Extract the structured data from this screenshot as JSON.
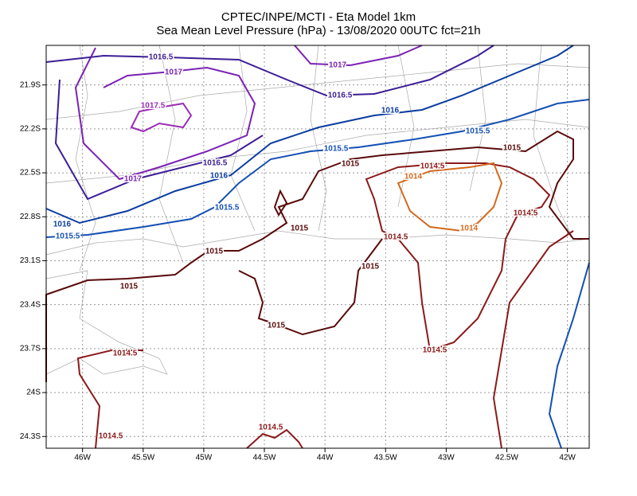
{
  "title": [
    "CPTEC/INPE/MCTI -  Eta Model 1km",
    "Sea Mean Level Pressure (hPa) - 13/08/2020 00UTC fct=21h"
  ],
  "map": {
    "xlim": [
      -46.3,
      -41.82
    ],
    "ylim": [
      -24.38,
      -21.63
    ],
    "xticks": [
      {
        "value": -46,
        "label": "46W"
      },
      {
        "value": -45.5,
        "label": "45.5W"
      },
      {
        "value": -45,
        "label": "45W"
      },
      {
        "value": -44.5,
        "label": "44.5W"
      },
      {
        "value": -44,
        "label": "44W"
      },
      {
        "value": -43.5,
        "label": "43.5W"
      },
      {
        "value": -43,
        "label": "43W"
      },
      {
        "value": -42.5,
        "label": "42.5W"
      },
      {
        "value": -42,
        "label": "42W"
      }
    ],
    "yticks": [
      {
        "value": -21.9,
        "label": "21.9S"
      },
      {
        "value": -22.2,
        "label": "22.2S"
      },
      {
        "value": -22.5,
        "label": "22.5S"
      },
      {
        "value": -22.8,
        "label": "22.8S"
      },
      {
        "value": -23.1,
        "label": "23.1S"
      },
      {
        "value": -23.4,
        "label": "23.4S"
      },
      {
        "value": -23.7,
        "label": "23.7S"
      },
      {
        "value": -24,
        "label": "24S"
      },
      {
        "value": -24.3,
        "label": "24.3S"
      }
    ],
    "grid": true,
    "contour_levels": [
      {
        "value": 1014,
        "color": "#d2691e"
      },
      {
        "value": 1014.5,
        "color": "#8b1a1a"
      },
      {
        "value": 1015,
        "color": "#5a0a0a"
      },
      {
        "value": 1015.5,
        "color": "#1450b4"
      },
      {
        "value": 1016,
        "color": "#0a3ca0"
      },
      {
        "value": 1016.5,
        "color": "#3c1e96"
      },
      {
        "value": 1017,
        "color": "#7a22b4"
      },
      {
        "value": 1017.5,
        "color": "#9a2cb4"
      }
    ],
    "labels": [
      1016.5,
      1017,
      1017,
      1016.5,
      1016,
      1017.5,
      1015.5,
      1015.5,
      1015,
      1015,
      1014.5,
      1014,
      1016.5,
      1016,
      1017,
      1015.5,
      1016,
      1015.5,
      1015,
      1014.5,
      1014,
      1014.5,
      1015,
      1015,
      1015,
      1015,
      1014.5,
      1014.5,
      1014.5,
      1014.5
    ]
  }
}
